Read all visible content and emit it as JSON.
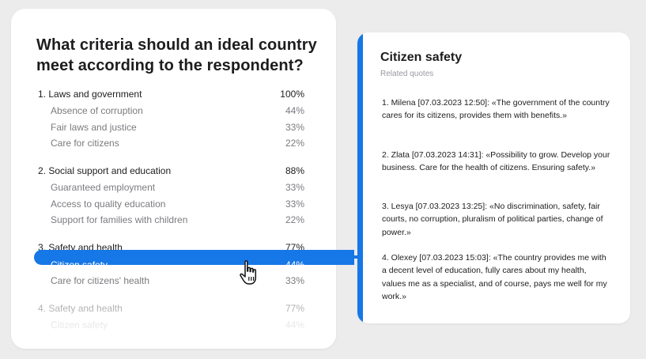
{
  "left": {
    "question": "What criteria should an ideal country meet according to the respondent?",
    "groups": [
      {
        "label": "1. Laws and government",
        "pct": "100%",
        "items": [
          {
            "label": "Absence of corruption",
            "pct": "44%"
          },
          {
            "label": "Fair laws and justice",
            "pct": "33%"
          },
          {
            "label": "Care for citizens",
            "pct": "22%"
          }
        ]
      },
      {
        "label": "2. Social support and education",
        "pct": "88%",
        "items": [
          {
            "label": "Guaranteed employment",
            "pct": "33%"
          },
          {
            "label": "Access to quality education",
            "pct": "33%"
          },
          {
            "label": "Support for families with children",
            "pct": "22%"
          }
        ]
      },
      {
        "label": "3. Safety and health",
        "pct": "77%",
        "items": [
          {
            "label": "Citizen safety",
            "pct": "44%",
            "selected": true
          },
          {
            "label": "Care for citizens' health",
            "pct": "33%"
          }
        ]
      },
      {
        "label": "4. Safety and health",
        "pct": "77%",
        "items": [
          {
            "label": "Citizen safety",
            "pct": "44%"
          }
        ]
      }
    ]
  },
  "right": {
    "title": "Citizen safety",
    "subtitle": "Related quotes",
    "quotes": [
      "1. Milena [07.03.2023 12:50]: «The government of the country cares for its citizens, provides them with benefits.»",
      "2. Zlata [07.03.2023 14:31]: «Possibility to grow. Develop your business. Care for the health of citizens. Ensuring safety.»",
      "3. Lesya [07.03.2023 13:25]: «No discrimination, safety, fair courts, no corruption, pluralism of political parties, change of power.»",
      "4. Olexey [07.03.2023 15:03]: «The country provides me with a decent level of education, fully cares about my health, values me as a specialist, and of course, pays me well for my work.»"
    ]
  },
  "colors": {
    "accent": "#1677e6",
    "background": "#ececed",
    "card": "#ffffff",
    "muted_text": "#7b7b80"
  },
  "icons": {
    "cursor": "hand-pointer-icon"
  }
}
